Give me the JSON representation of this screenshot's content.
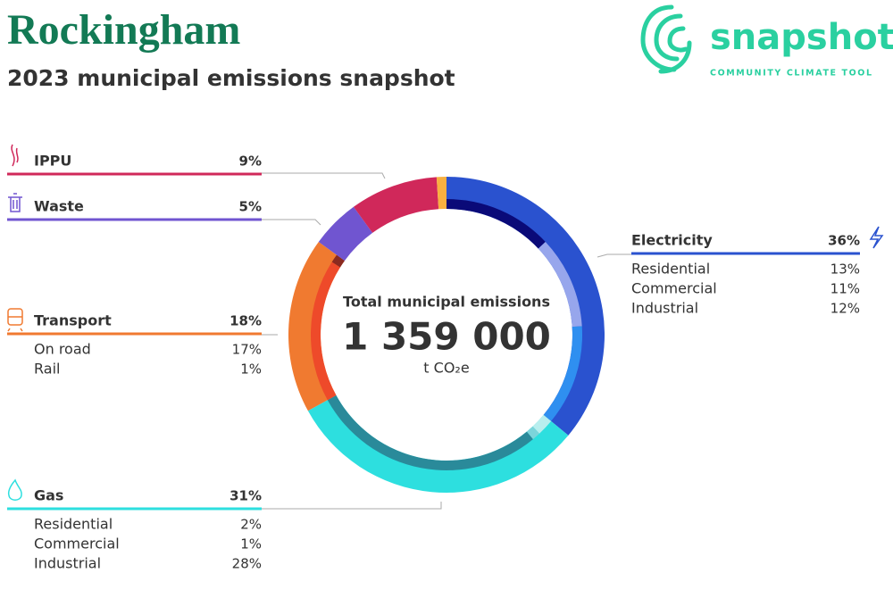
{
  "chart_data": {
    "type": "donut",
    "title": "Rockingham",
    "subtitle": "2023 municipal emissions snapshot",
    "center_label": "Total municipal emissions",
    "total": {
      "value": 1359000,
      "label": "1 359 000"
    },
    "unit": "t CO₂e",
    "sectors": [
      {
        "name": "Electricity",
        "color": "#2a52cf",
        "value": 36,
        "value_label": "36%",
        "sub": [
          {
            "name": "Residential",
            "color": "#0a0a78",
            "value": 13,
            "value_label": "13%"
          },
          {
            "name": "Commercial",
            "color": "#97a6ec",
            "value": 11,
            "value_label": "11%"
          },
          {
            "name": "Industrial",
            "color": "#2f8ff0",
            "value": 12,
            "value_label": "12%"
          }
        ]
      },
      {
        "name": "Gas",
        "color": "#2ddfdf",
        "value": 31,
        "value_label": "31%",
        "sub": [
          {
            "name": "Residential",
            "color": "#b8eeee",
            "value": 2,
            "value_label": "2%"
          },
          {
            "name": "Commercial",
            "color": "#7cd4da",
            "value": 1,
            "value_label": "1%"
          },
          {
            "name": "Industrial",
            "color": "#2a8a9a",
            "value": 28,
            "value_label": "28%"
          }
        ]
      },
      {
        "name": "Transport",
        "color": "#f07a30",
        "value": 18,
        "value_label": "18%",
        "sub": [
          {
            "name": "On road",
            "color": "#ee4a2a",
            "value": 17,
            "value_label": "17%"
          },
          {
            "name": "Rail",
            "color": "#8a2a20",
            "value": 1,
            "value_label": "1%"
          }
        ]
      },
      {
        "name": "Waste",
        "color": "#7055d0",
        "value": 5,
        "value_label": "5%"
      },
      {
        "name": "IPPU",
        "color": "#d0285a",
        "value": 9,
        "value_label": "9%"
      },
      {
        "name": null,
        "color": "#f8b040",
        "value": 1
      }
    ]
  },
  "logo": {
    "name": "snapshot",
    "tagline": "COMMUNITY CLIMATE TOOL"
  }
}
